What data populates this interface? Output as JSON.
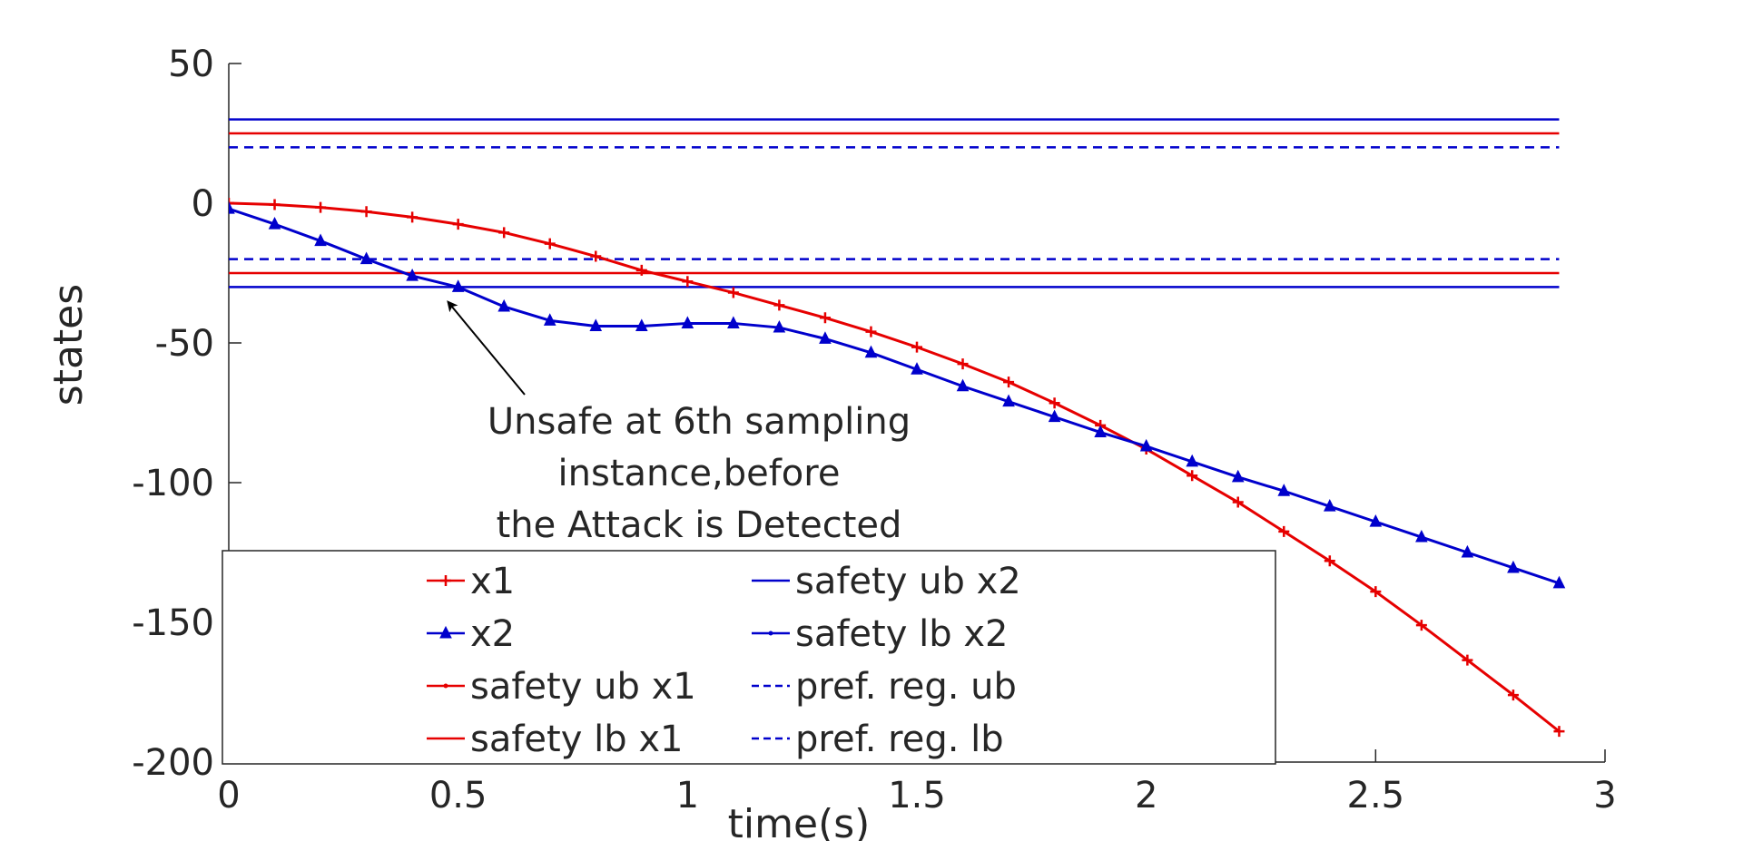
{
  "chart_data": {
    "type": "line",
    "title": "",
    "xlabel": "time(s)",
    "ylabel": "states",
    "xlim": [
      0,
      3
    ],
    "ylim": [
      -200,
      50
    ],
    "xticks": [
      0,
      0.5,
      1,
      1.5,
      2,
      2.5,
      3
    ],
    "xtick_labels": [
      "0",
      "0.5",
      "1",
      "1.5",
      "2",
      "2.5",
      "3"
    ],
    "yticks": [
      50,
      0,
      -50,
      -100,
      -150,
      -200
    ],
    "ytick_labels": [
      "50",
      "0",
      "-50",
      "-100",
      "-150",
      "-200"
    ],
    "grid": false,
    "legend_position": "lower-left",
    "x": [
      0,
      0.1,
      0.2,
      0.3,
      0.4,
      0.5,
      0.6,
      0.7,
      0.8,
      0.9,
      1.0,
      1.1,
      1.2,
      1.3,
      1.4,
      1.5,
      1.6,
      1.7,
      1.8,
      1.9,
      2.0,
      2.1,
      2.2,
      2.3,
      2.4,
      2.5,
      2.6,
      2.7,
      2.8,
      2.9
    ],
    "series": [
      {
        "name": "x1",
        "color": "#e60000",
        "marker": "plus",
        "values": [
          0,
          -0.5,
          -1.5,
          -3,
          -5,
          -7.5,
          -10.5,
          -14.5,
          -19,
          -24,
          -28,
          -32,
          -36.5,
          -41,
          -46,
          -51.5,
          -57.5,
          -64,
          -71.5,
          -79.5,
          -88,
          -97.5,
          -107,
          -117.5,
          -128,
          -139,
          -151,
          -163.5,
          -176,
          -189
        ]
      },
      {
        "name": "x2",
        "color": "#0000cc",
        "marker": "triangle",
        "values": [
          -2,
          -7.5,
          -13.5,
          -20,
          -26,
          -30,
          -37,
          -42,
          -44,
          -44,
          -43,
          -43,
          -44.5,
          -48.5,
          -53.5,
          -59.5,
          -65.5,
          -71,
          -76.5,
          -82,
          -87,
          -92.5,
          -98,
          -103,
          -108.5,
          -114,
          -119.5,
          -125,
          -130.5,
          -136
        ]
      }
    ],
    "reference_lines": [
      {
        "name": "safety ub x1",
        "y": 25,
        "color": "#e60000",
        "style": "solid"
      },
      {
        "name": "safety lb x1",
        "y": -25,
        "color": "#e60000",
        "style": "solid"
      },
      {
        "name": "safety ub x2",
        "y": 30,
        "color": "#0000cc",
        "style": "solid"
      },
      {
        "name": "safety lb x2",
        "y": -30,
        "color": "#0000cc",
        "style": "solid"
      },
      {
        "name": "pref. reg. ub",
        "y": 20,
        "color": "#0000cc",
        "style": "dashed"
      },
      {
        "name": "pref. reg. lb",
        "y": -20,
        "color": "#0000cc",
        "style": "dashed"
      }
    ],
    "annotation": {
      "lines": [
        "Unsafe at 6th sampling",
        "instance,before",
        "the Attack is Detected"
      ],
      "arrow_to": {
        "x": 0.47,
        "y": -34
      }
    },
    "legend": [
      {
        "label": "x1",
        "color": "#e60000",
        "style": "solid",
        "marker": "plus"
      },
      {
        "label": "x2",
        "color": "#0000cc",
        "style": "solid",
        "marker": "triangle"
      },
      {
        "label": "safety ub x1",
        "color": "#e60000",
        "style": "solid",
        "marker": "dot"
      },
      {
        "label": "safety lb x1",
        "color": "#e60000",
        "style": "solid",
        "marker": "none"
      },
      {
        "label": "safety ub x2",
        "color": "#0000cc",
        "style": "solid",
        "marker": "none"
      },
      {
        "label": "safety lb x2",
        "color": "#0000cc",
        "style": "solid",
        "marker": "dot"
      },
      {
        "label": "pref. reg. ub",
        "color": "#0000cc",
        "style": "dashed",
        "marker": "none"
      },
      {
        "label": "pref. reg. lb",
        "color": "#0000cc",
        "style": "dashed",
        "marker": "none"
      }
    ]
  }
}
